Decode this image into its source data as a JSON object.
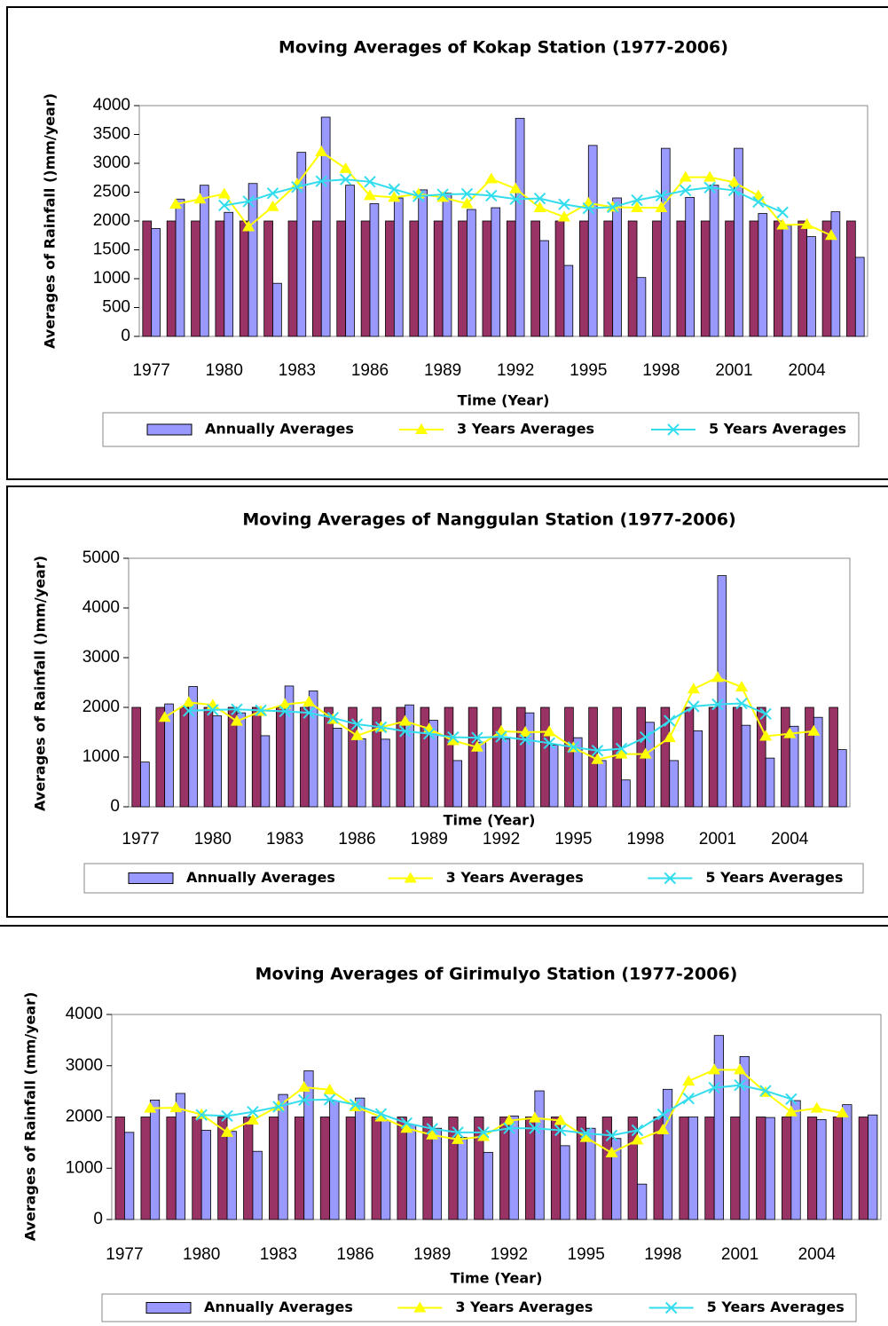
{
  "chart_data": [
    {
      "type": "combo",
      "title": "Moving Averages of Kokap Station (1977-2006)",
      "x_label": "Time (Year)",
      "y_label": "Averages of Rainfall ()mm/year)",
      "categories": [
        1977,
        null,
        null,
        1980,
        null,
        null,
        1983,
        null,
        null,
        1986,
        null,
        null,
        1989,
        null,
        null,
        1992,
        null,
        null,
        1995,
        null,
        null,
        1998,
        null,
        null,
        2001,
        null,
        null,
        2004,
        null,
        null
      ],
      "ylim": [
        0,
        4000
      ],
      "yticks": [
        0,
        500,
        1000,
        1500,
        2000,
        2500,
        3000,
        3500,
        4000
      ],
      "grid": false,
      "series": [
        {
          "type": "bar",
          "color": "#993366",
          "values": [
            2000,
            2000,
            2000,
            2000,
            2000,
            2000,
            2000,
            2000,
            2000,
            2000,
            2000,
            2000,
            2000,
            2000,
            2000,
            2000,
            2000,
            2000,
            2000,
            2000,
            2000,
            2000,
            2000,
            2000,
            2000,
            2000,
            2000,
            2000,
            2000,
            2000
          ]
        },
        {
          "type": "bar",
          "name": "Annually Averages",
          "color": "#9999ff",
          "values": [
            1870,
            2380,
            2620,
            2150,
            2650,
            920,
            3190,
            3800,
            2620,
            2300,
            2400,
            2540,
            2480,
            2200,
            2230,
            3780,
            1660,
            1230,
            3310,
            2400,
            1020,
            3260,
            2410,
            2620,
            3260,
            2130,
            1920,
            1730,
            2160,
            1370
          ]
        },
        {
          "type": "line",
          "marker": "triangle",
          "name": "3 Years Averages",
          "color": "#ffff00",
          "values": [
            null,
            2290,
            2380,
            2470,
            1900,
            2250,
            2640,
            3200,
            2910,
            2440,
            2410,
            2470,
            2410,
            2300,
            2730,
            2560,
            2230,
            2070,
            2310,
            2240,
            2230,
            2230,
            2760,
            2760,
            2670,
            2440,
            1930,
            1940,
            1750,
            null
          ]
        },
        {
          "type": "line",
          "marker": "x",
          "name": "5 Years Averages",
          "color": "#33ddee",
          "values": [
            null,
            null,
            null,
            2270,
            2340,
            2480,
            2590,
            2690,
            2720,
            2680,
            2550,
            2430,
            2460,
            2470,
            2440,
            2380,
            2390,
            2290,
            2220,
            2240,
            2360,
            2440,
            2530,
            2580,
            2530,
            2330,
            2150,
            null,
            null,
            null
          ]
        }
      ]
    },
    {
      "type": "combo",
      "title": "Moving Averages of Nanggulan Station (1977-2006)",
      "x_label": "Time (Year)",
      "y_label": "Averages of Rainfall ()mm/year)",
      "categories": [
        1977,
        null,
        null,
        1980,
        null,
        null,
        1983,
        null,
        null,
        1986,
        null,
        null,
        1989,
        null,
        null,
        1992,
        null,
        null,
        1995,
        null,
        null,
        1998,
        null,
        null,
        2001,
        null,
        null,
        2004,
        null,
        null
      ],
      "ylim": [
        0,
        5000
      ],
      "yticks": [
        0,
        1000,
        2000,
        3000,
        4000,
        5000
      ],
      "grid": false,
      "series": [
        {
          "type": "bar",
          "color": "#993366",
          "values": [
            2000,
            2000,
            2000,
            2000,
            2000,
            2000,
            2000,
            2000,
            2000,
            2000,
            2000,
            2000,
            2000,
            2000,
            2000,
            2000,
            2000,
            2000,
            2000,
            2000,
            2000,
            2000,
            2000,
            2000,
            2000,
            2000,
            2000,
            2000,
            2000,
            2000
          ]
        },
        {
          "type": "bar",
          "name": "Annually Averages",
          "color": "#9999ff",
          "values": [
            900,
            2070,
            2420,
            1830,
            1890,
            1430,
            2430,
            2330,
            1580,
            1370,
            1360,
            2050,
            1740,
            930,
            1300,
            1370,
            1890,
            1240,
            1390,
            930,
            540,
            1700,
            930,
            1530,
            4650,
            1640,
            980,
            1620,
            1800,
            1150
          ]
        },
        {
          "type": "line",
          "marker": "triangle",
          "name": "3 Years Averages",
          "color": "#ffff00",
          "values": [
            null,
            1800,
            2100,
            2050,
            1720,
            1920,
            2060,
            2110,
            1760,
            1430,
            1600,
            1720,
            1570,
            1330,
            1200,
            1520,
            1500,
            1510,
            1190,
            950,
            1060,
            1060,
            1390,
            2370,
            2600,
            2410,
            1420,
            1470,
            1520,
            null
          ]
        },
        {
          "type": "line",
          "marker": "x",
          "name": "5 Years Averages",
          "color": "#33ddee",
          "values": [
            null,
            null,
            1930,
            1950,
            1960,
            1940,
            1920,
            1890,
            1790,
            1660,
            1600,
            1520,
            1470,
            1400,
            1390,
            1410,
            1350,
            1280,
            1200,
            1130,
            1170,
            1400,
            1730,
            2020,
            2060,
            2080,
            1870,
            null,
            null,
            null
          ]
        }
      ]
    },
    {
      "type": "combo",
      "title": "Moving Averages of Girimulyo Station (1977-2006)",
      "x_label": "Time (Year)",
      "y_label": "Averages of Rainfall (mm/year)",
      "categories": [
        1977,
        null,
        null,
        1980,
        null,
        null,
        1983,
        null,
        null,
        1986,
        null,
        null,
        1989,
        null,
        null,
        1992,
        null,
        null,
        1995,
        null,
        null,
        1998,
        null,
        null,
        2001,
        null,
        null,
        2004,
        null,
        null
      ],
      "ylim": [
        0,
        4000
      ],
      "yticks": [
        0,
        1000,
        2000,
        3000,
        4000
      ],
      "grid": false,
      "series": [
        {
          "type": "bar",
          "color": "#993366",
          "values": [
            2000,
            2000,
            2000,
            2000,
            2000,
            2000,
            2000,
            2000,
            2000,
            2000,
            2000,
            2000,
            2000,
            2000,
            2000,
            2000,
            2000,
            2000,
            2000,
            2000,
            2000,
            2000,
            2000,
            2000,
            2000,
            2000,
            2000,
            2000,
            2000,
            2000
          ]
        },
        {
          "type": "bar",
          "name": "Annually Averages",
          "color": "#9999ff",
          "values": [
            1700,
            2330,
            2460,
            1740,
            1720,
            1330,
            2440,
            2900,
            2310,
            2370,
            1930,
            1850,
            1780,
            1600,
            1310,
            2020,
            2510,
            1440,
            1780,
            1580,
            690,
            2540,
            2000,
            3590,
            3180,
            1990,
            2320,
            1950,
            2240,
            2040
          ]
        },
        {
          "type": "line",
          "marker": "triangle",
          "name": "3 Years Averages",
          "color": "#ffff00",
          "values": [
            null,
            2170,
            2180,
            2050,
            1700,
            1940,
            2210,
            2580,
            2530,
            2200,
            2000,
            1780,
            1650,
            1560,
            1620,
            1930,
            1980,
            1930,
            1600,
            1300,
            1550,
            1750,
            2700,
            2920,
            2920,
            2480,
            2100,
            2170,
            2080,
            null
          ]
        },
        {
          "type": "line",
          "marker": "x",
          "name": "5 Years Averages",
          "color": "#33ddee",
          "values": [
            null,
            null,
            null,
            2040,
            2020,
            2100,
            2200,
            2330,
            2340,
            2240,
            2060,
            1880,
            1770,
            1700,
            1700,
            1780,
            1780,
            1740,
            1680,
            1640,
            1740,
            2050,
            2360,
            2570,
            2620,
            2510,
            2350,
            null,
            null,
            null
          ]
        }
      ]
    }
  ]
}
